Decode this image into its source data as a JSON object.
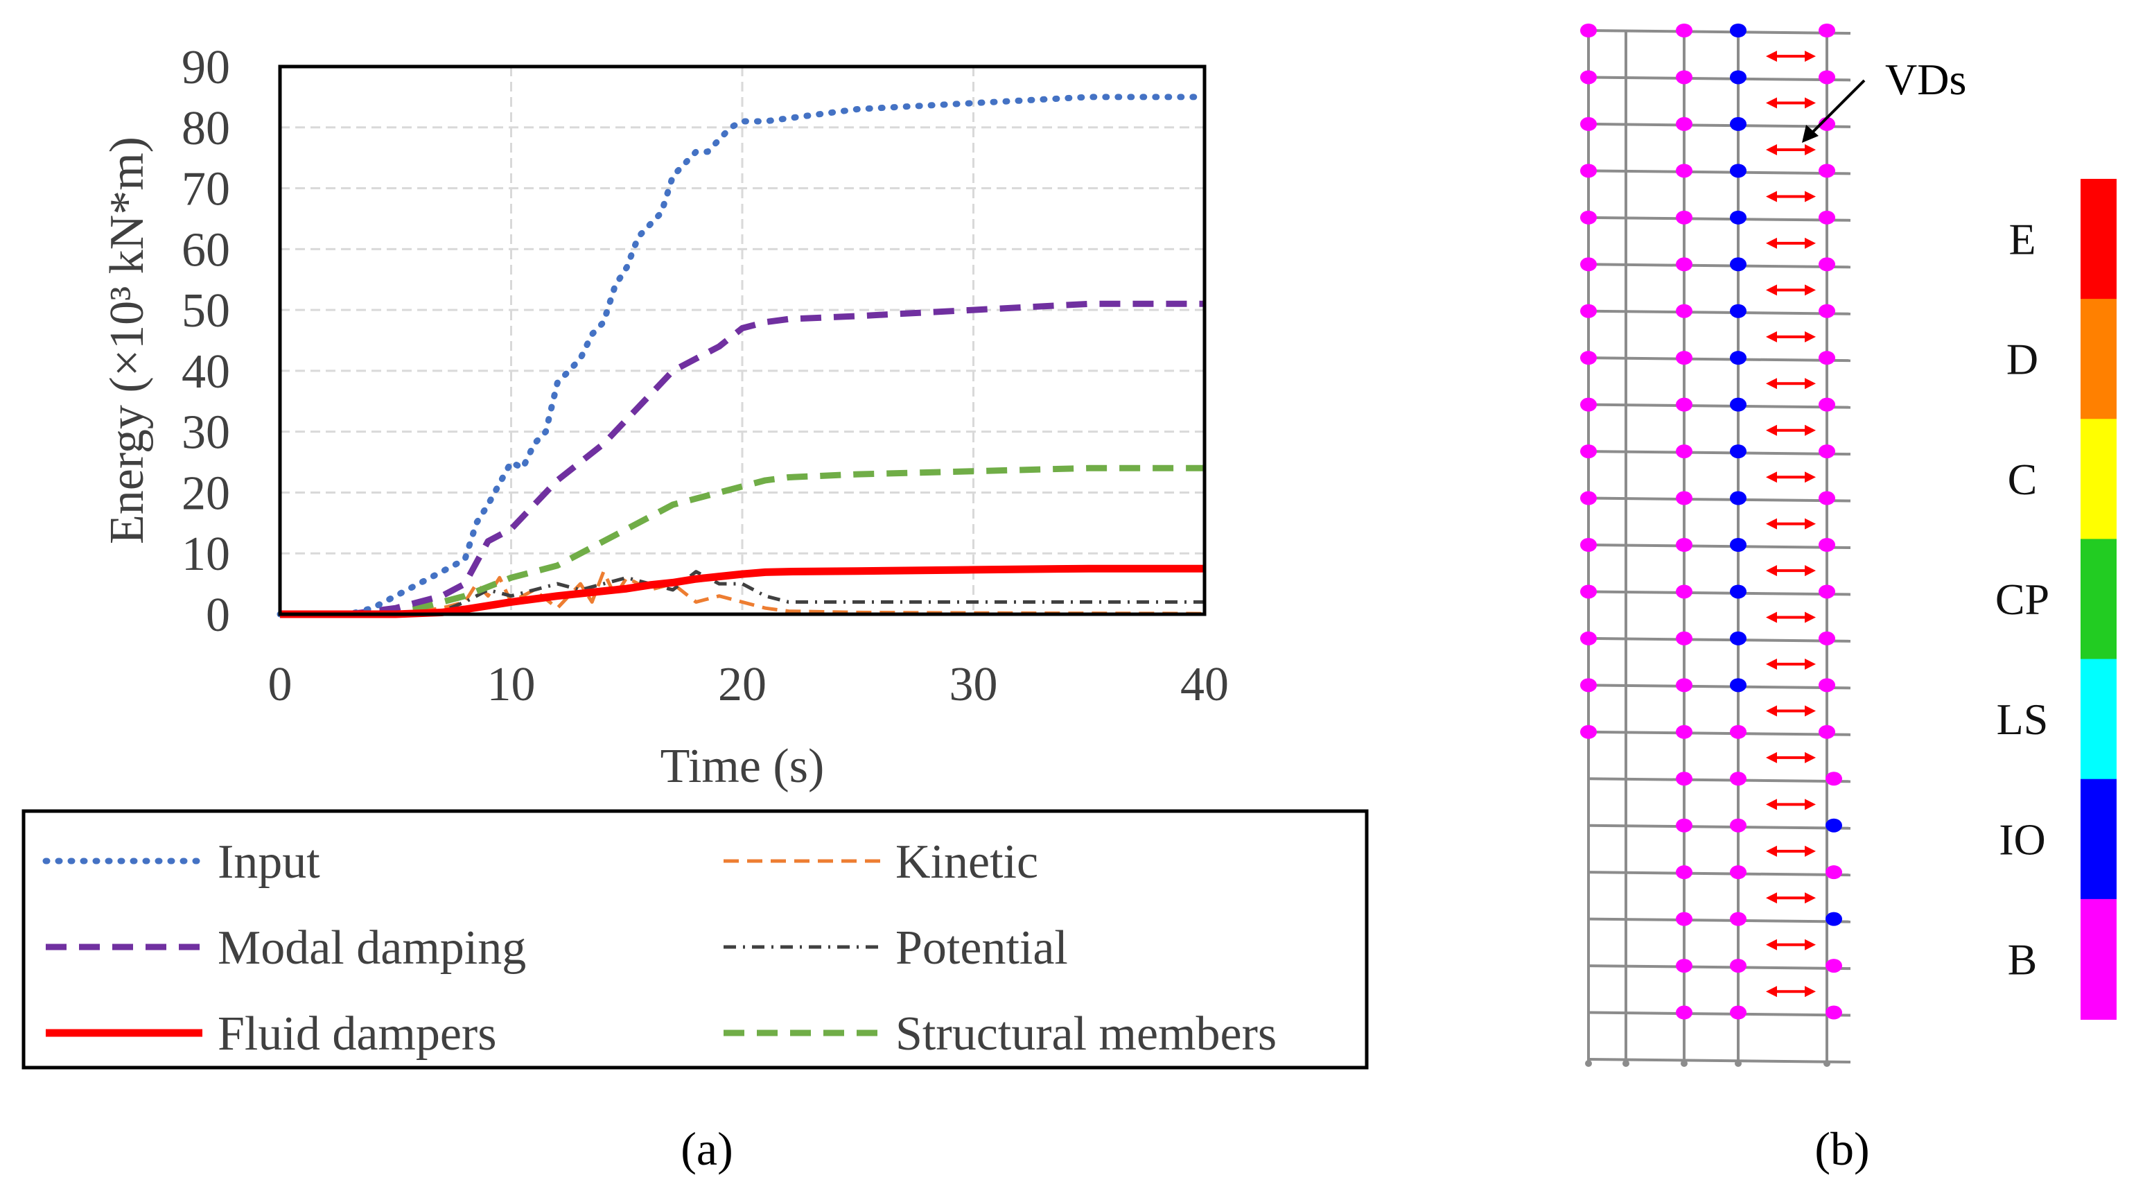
{
  "chart_data": [
    {
      "type": "line",
      "panel": "(a)",
      "title": "",
      "xlabel": "Time (s)",
      "ylabel": "Energy (×10³ kN*m)",
      "xlim": [
        0,
        40
      ],
      "ylim": [
        0,
        90
      ],
      "xticks": [
        0,
        10,
        20,
        30,
        40
      ],
      "yticks": [
        0,
        10,
        20,
        30,
        40,
        50,
        60,
        70,
        80,
        90
      ],
      "grid": true,
      "legend_position": "below",
      "series": [
        {
          "name": "Input",
          "color": "#4472C4",
          "style": "dotted",
          "x": [
            0,
            3,
            4,
            5,
            6,
            7,
            8,
            8.5,
            9,
            10,
            10.5,
            11,
            11.5,
            12,
            12.5,
            13,
            13.5,
            14,
            14.5,
            15,
            15.5,
            16,
            16.5,
            17,
            17.5,
            18,
            18.5,
            19,
            19.5,
            20,
            21,
            25,
            30,
            35,
            40
          ],
          "y": [
            0,
            0,
            1,
            3,
            5,
            7,
            9,
            15,
            18,
            25,
            24,
            28,
            30,
            38,
            40,
            42,
            46,
            48,
            54,
            57,
            62,
            64,
            66,
            72,
            74,
            76,
            76,
            78,
            80,
            81,
            81,
            83,
            84,
            85,
            85
          ]
        },
        {
          "name": "Kinetic",
          "color": "#ED7D31",
          "style": "dashed",
          "x": [
            0,
            5,
            6,
            7,
            8,
            8.5,
            9,
            9.5,
            10,
            11,
            12,
            13,
            13.5,
            14,
            14.5,
            15,
            16,
            17,
            18,
            19,
            20,
            21,
            22,
            25,
            30,
            40
          ],
          "y": [
            0,
            0,
            0.5,
            1,
            2,
            5,
            3,
            6,
            2,
            4,
            1,
            5,
            2,
            7,
            3,
            6,
            4,
            5,
            2,
            3,
            2,
            1,
            0.5,
            0.3,
            0.2,
            0.1
          ]
        },
        {
          "name": "Modal damping",
          "color": "#7030A0",
          "style": "dashed",
          "x": [
            0,
            3,
            5,
            7,
            8,
            9,
            10,
            12,
            14,
            16,
            17,
            18,
            19,
            20,
            21,
            22,
            25,
            30,
            35,
            40
          ],
          "y": [
            0,
            0,
            1,
            3,
            5,
            12,
            14,
            22,
            28,
            36,
            40,
            42,
            44,
            47,
            48,
            48.5,
            49,
            50,
            51,
            51
          ]
        },
        {
          "name": "Potential",
          "color": "#404040",
          "style": "dashdot",
          "x": [
            0,
            5,
            7,
            8,
            9,
            10,
            11,
            12,
            13,
            14,
            15,
            16,
            17,
            18,
            19,
            20,
            21,
            22,
            25,
            30,
            40
          ],
          "y": [
            0,
            0,
            0.5,
            2,
            4,
            3,
            4,
            5,
            4,
            5,
            6,
            5,
            4,
            7,
            5,
            5,
            3,
            2,
            2,
            2,
            2
          ]
        },
        {
          "name": "Fluid dampers",
          "color": "#FF0000",
          "style": "solid",
          "x": [
            0,
            5,
            7,
            8,
            10,
            12,
            14,
            15,
            16,
            17,
            18,
            19,
            20,
            21,
            22,
            25,
            30,
            35,
            40
          ],
          "y": [
            0,
            0,
            0.3,
            0.8,
            2,
            3,
            3.8,
            4.2,
            4.8,
            5.2,
            5.8,
            6.2,
            6.6,
            6.9,
            7,
            7.1,
            7.3,
            7.5,
            7.5
          ]
        },
        {
          "name": "Structural members",
          "color": "#70AD47",
          "style": "dashed",
          "x": [
            0,
            4,
            6,
            8,
            10,
            12,
            14,
            16,
            17,
            18,
            19,
            20,
            21,
            22,
            25,
            30,
            35,
            40
          ],
          "y": [
            0,
            0,
            1,
            3,
            6,
            8,
            12,
            16,
            18,
            19,
            20,
            21,
            22,
            22.5,
            23,
            23.5,
            24,
            24
          ]
        }
      ]
    },
    {
      "type": "diagram",
      "panel": "(b)",
      "annotation": "VDs",
      "stories": 22,
      "damper_stories": 21,
      "legend_levels": [
        "E",
        "D",
        "C",
        "CP",
        "LS",
        "IO",
        "B"
      ],
      "legend_colors": [
        "#FF0000",
        "#FF8000",
        "#FFFF00",
        "#22CC22",
        "#00FFFF",
        "#0000FF",
        "#FF00FF"
      ],
      "hinge_colors": {
        "B": "#FF00FF",
        "IO": "#0000FF",
        "damper": "#FF0000",
        "frame": "#8C8C8C"
      }
    }
  ],
  "labels": {
    "panel_a": "(a)",
    "panel_b": "(b)"
  }
}
